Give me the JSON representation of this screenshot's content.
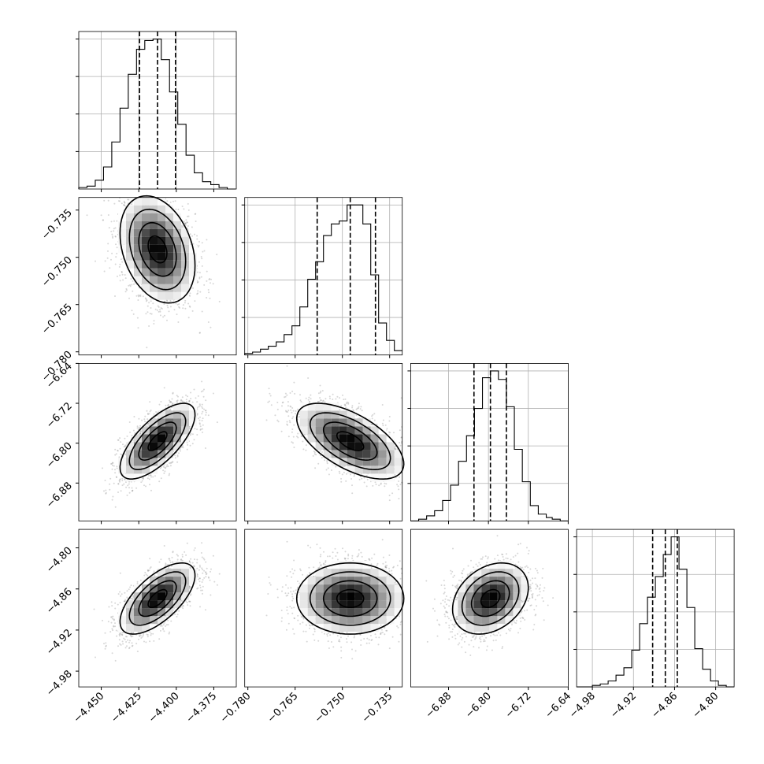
{
  "chart_data": {
    "type": "corner",
    "grid": true,
    "colors": {
      "line": "#000000",
      "grid": "#b0b0b0",
      "scatter": "#8c8c8c"
    },
    "params": [
      {
        "range": [
          -4.465,
          -4.36
        ],
        "ticks": [
          "-4.450",
          "-4.425",
          "-4.400",
          "-4.375"
        ],
        "tick_values": [
          -4.45,
          -4.425,
          -4.4,
          -4.375
        ]
      },
      {
        "range": [
          -0.781,
          -0.731
        ],
        "ticks": [
          "-0.780",
          "-0.765",
          "-0.750",
          "-0.735"
        ],
        "tick_values": [
          -0.78,
          -0.765,
          -0.75,
          -0.735
        ]
      },
      {
        "range": [
          -6.956,
          -6.64
        ],
        "ticks": [
          "-6.88",
          "-6.80",
          "-6.72",
          "-6.64"
        ],
        "tick_values": [
          -6.88,
          -6.8,
          -6.72,
          -6.64
        ]
      },
      {
        "range": [
          -5.003,
          -4.773
        ],
        "ticks": [
          "-4.98",
          "-4.92",
          "-4.86",
          "-4.80"
        ],
        "tick_values": [
          -4.98,
          -4.92,
          -4.86,
          -4.8
        ]
      }
    ],
    "diagonal": [
      {
        "quantiles": [
          -4.4245,
          -4.4125,
          -4.4005
        ],
        "hist_bins": [
          -4.465,
          -4.4595,
          -4.454,
          -4.4485,
          -4.443,
          -4.4375,
          -4.432,
          -4.4265,
          -4.421,
          -4.4155,
          -4.41,
          -4.4045,
          -4.399,
          -4.3935,
          -4.388,
          -4.3825,
          -4.377,
          -4.3715,
          -4.366,
          -4.3605
        ],
        "hist_counts": [
          1,
          2,
          6,
          15,
          32,
          55,
          78,
          95,
          101,
          102,
          88,
          66,
          44,
          23,
          11,
          5,
          3,
          1,
          0
        ]
      },
      {
        "quantiles": [
          -0.758,
          -0.7475,
          -0.7395
        ],
        "hist_bins": [
          -0.781,
          -0.7785,
          -0.776,
          -0.7735,
          -0.771,
          -0.7685,
          -0.766,
          -0.7635,
          -0.761,
          -0.7585,
          -0.756,
          -0.7535,
          -0.751,
          -0.7485,
          -0.746,
          -0.7435,
          -0.741,
          -0.7385,
          -0.736,
          -0.7335,
          -0.731
        ],
        "hist_counts": [
          1,
          2,
          4,
          6,
          9,
          14,
          20,
          33,
          52,
          64,
          82,
          90,
          92,
          103,
          103,
          90,
          55,
          22,
          10,
          3
        ]
      },
      {
        "quantiles": [
          -6.829,
          -6.796,
          -6.764
        ],
        "hist_bins": [
          -6.956,
          -6.94,
          -6.924,
          -6.908,
          -6.892,
          -6.876,
          -6.86,
          -6.844,
          -6.828,
          -6.812,
          -6.796,
          -6.78,
          -6.764,
          -6.748,
          -6.732,
          -6.716,
          -6.7,
          -6.684,
          -6.672,
          -6.656,
          -6.64
        ],
        "hist_counts": [
          0,
          1,
          3,
          6,
          12,
          21,
          35,
          50,
          66,
          84,
          88,
          83,
          67,
          42,
          23,
          9,
          4,
          2,
          1,
          0
        ]
      },
      {
        "quantiles": [
          -4.892,
          -4.8735,
          -4.856
        ],
        "hist_bins": [
          -5.003,
          -4.9915,
          -4.98,
          -4.9685,
          -4.957,
          -4.9455,
          -4.934,
          -4.9225,
          -4.911,
          -4.8995,
          -4.888,
          -4.8765,
          -4.865,
          -4.8535,
          -4.842,
          -4.8305,
          -4.819,
          -4.8075,
          -4.796,
          -4.7845,
          -4.773
        ],
        "hist_counts": [
          0,
          0,
          1,
          2,
          4,
          8,
          13,
          25,
          43,
          61,
          75,
          90,
          102,
          80,
          54,
          26,
          12,
          4,
          1,
          0
        ]
      }
    ],
    "pairs": [
      {
        "row": 1,
        "col": 0,
        "mean": [
          -4.4125,
          -0.7475
        ],
        "sd": [
          0.0125,
          0.0085
        ],
        "rho": -0.3
      },
      {
        "row": 2,
        "col": 0,
        "mean": [
          -4.4125,
          -6.796
        ],
        "sd": [
          0.0125,
          0.038
        ],
        "rho": 0.7
      },
      {
        "row": 2,
        "col": 1,
        "mean": [
          -0.7475,
          -6.796
        ],
        "sd": [
          0.0085,
          0.038
        ],
        "rho": -0.6
      },
      {
        "row": 3,
        "col": 0,
        "mean": [
          -4.4125,
          -4.874
        ],
        "sd": [
          0.0125,
          0.026
        ],
        "rho": 0.65
      },
      {
        "row": 3,
        "col": 1,
        "mean": [
          -0.7475,
          -4.874
        ],
        "sd": [
          0.0085,
          0.026
        ],
        "rho": 0.0
      },
      {
        "row": 3,
        "col": 2,
        "mean": [
          -6.796,
          -4.874
        ],
        "sd": [
          0.038,
          0.026
        ],
        "rho": 0.3
      }
    ]
  }
}
